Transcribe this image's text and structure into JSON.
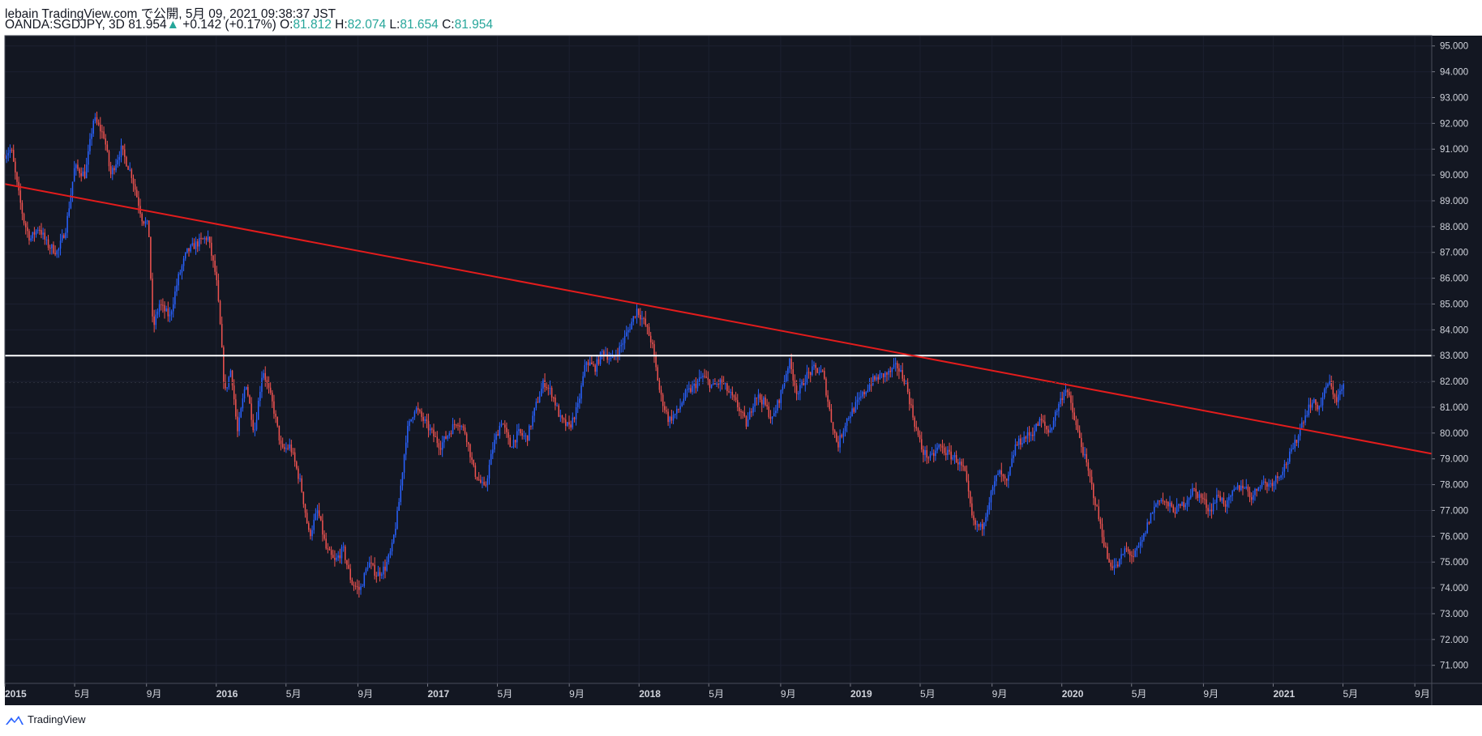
{
  "header": {
    "publish_line": "lebain TradingView.com で公開, 5月 09, 2021 09:38:37 JST",
    "symbol": "OANDA:SGDJPY, 3D",
    "last": "81.954",
    "up_arrow": "▲",
    "change": "+0.142 (+0.17%)",
    "o_label": "O:",
    "o_value": "81.812",
    "h_label": "H:",
    "h_value": "82.074",
    "l_label": "L:",
    "l_value": "81.654",
    "c_label": "C:",
    "c_value": "81.954"
  },
  "footer": {
    "brand": "TradingView",
    "logo_icon": "tradingview-logo-icon"
  },
  "colors": {
    "background": "#131722",
    "up": "#2962ff",
    "down": "#ef5350",
    "trendline": "#e31c1c",
    "hline": "#ffffff",
    "axis_text": "#d1d4dc"
  },
  "chart_data": {
    "type": "candlestick",
    "symbol": "OANDA:SGDJPY",
    "timeframe": "3D",
    "ylim": [
      70.3,
      95.4
    ],
    "y_ticks": [
      71,
      72,
      73,
      74,
      75,
      76,
      77,
      78,
      79,
      80,
      81,
      82,
      83,
      84,
      85,
      86,
      87,
      88,
      89,
      90,
      91,
      92,
      93,
      94,
      95
    ],
    "y_tick_labels": [
      "71.000",
      "72.000",
      "73.000",
      "74.000",
      "75.000",
      "76.000",
      "77.000",
      "78.000",
      "79.000",
      "80.000",
      "81.000",
      "82.000",
      "83.000",
      "84.000",
      "85.000",
      "86.000",
      "87.000",
      "88.000",
      "89.000",
      "90.000",
      "91.000",
      "92.000",
      "93.000",
      "94.000",
      "95.000"
    ],
    "xlim": [
      2015.0,
      2021.75
    ],
    "x_ticks": [
      {
        "t": 2015.0,
        "label": "2015"
      },
      {
        "t": 2015.33,
        "label": "5月"
      },
      {
        "t": 2015.67,
        "label": "9月"
      },
      {
        "t": 2016.0,
        "label": "2016"
      },
      {
        "t": 2016.33,
        "label": "5月"
      },
      {
        "t": 2016.67,
        "label": "9月"
      },
      {
        "t": 2017.0,
        "label": "2017"
      },
      {
        "t": 2017.33,
        "label": "5月"
      },
      {
        "t": 2017.67,
        "label": "9月"
      },
      {
        "t": 2018.0,
        "label": "2018"
      },
      {
        "t": 2018.33,
        "label": "5月"
      },
      {
        "t": 2018.67,
        "label": "9月"
      },
      {
        "t": 2019.0,
        "label": "2019"
      },
      {
        "t": 2019.33,
        "label": "5月"
      },
      {
        "t": 2019.67,
        "label": "9月"
      },
      {
        "t": 2020.0,
        "label": "2020"
      },
      {
        "t": 2020.33,
        "label": "5月"
      },
      {
        "t": 2020.67,
        "label": "9月"
      },
      {
        "t": 2021.0,
        "label": "2021"
      },
      {
        "t": 2021.33,
        "label": "5月"
      },
      {
        "t": 2021.67,
        "label": "9月"
      }
    ],
    "close_path": [
      [
        2015.0,
        90.8
      ],
      [
        2015.03,
        91.0
      ],
      [
        2015.06,
        89.5
      ],
      [
        2015.09,
        88.2
      ],
      [
        2015.12,
        87.5
      ],
      [
        2015.16,
        88.0
      ],
      [
        2015.2,
        87.3
      ],
      [
        2015.25,
        87.0
      ],
      [
        2015.29,
        88.0
      ],
      [
        2015.33,
        90.3
      ],
      [
        2015.38,
        90.0
      ],
      [
        2015.42,
        92.2
      ],
      [
        2015.47,
        91.5
      ],
      [
        2015.5,
        90.0
      ],
      [
        2015.55,
        91.0
      ],
      [
        2015.6,
        90.0
      ],
      [
        2015.65,
        88.3
      ],
      [
        2015.68,
        88.0
      ],
      [
        2015.7,
        84.0
      ],
      [
        2015.73,
        85.0
      ],
      [
        2015.78,
        84.5
      ],
      [
        2015.82,
        86.0
      ],
      [
        2015.86,
        87.0
      ],
      [
        2015.9,
        87.3
      ],
      [
        2015.96,
        87.6
      ],
      [
        2016.0,
        86.0
      ],
      [
        2016.02,
        84.0
      ],
      [
        2016.04,
        81.5
      ],
      [
        2016.07,
        82.5
      ],
      [
        2016.1,
        80.0
      ],
      [
        2016.14,
        82.0
      ],
      [
        2016.18,
        80.0
      ],
      [
        2016.22,
        82.5
      ],
      [
        2016.27,
        81.0
      ],
      [
        2016.31,
        79.3
      ],
      [
        2016.35,
        79.5
      ],
      [
        2016.4,
        78.0
      ],
      [
        2016.44,
        76.0
      ],
      [
        2016.48,
        77.0
      ],
      [
        2016.52,
        75.5
      ],
      [
        2016.56,
        75.0
      ],
      [
        2016.6,
        75.5
      ],
      [
        2016.64,
        74.2
      ],
      [
        2016.68,
        73.9
      ],
      [
        2016.72,
        75.0
      ],
      [
        2016.76,
        74.5
      ],
      [
        2016.8,
        74.8
      ],
      [
        2016.83,
        75.5
      ],
      [
        2016.86,
        77.0
      ],
      [
        2016.9,
        80.0
      ],
      [
        2016.94,
        81.0
      ],
      [
        2016.98,
        80.5
      ],
      [
        2017.02,
        80.0
      ],
      [
        2017.06,
        79.5
      ],
      [
        2017.1,
        80.0
      ],
      [
        2017.14,
        80.5
      ],
      [
        2017.18,
        80.0
      ],
      [
        2017.22,
        78.5
      ],
      [
        2017.27,
        77.8
      ],
      [
        2017.31,
        79.5
      ],
      [
        2017.35,
        80.5
      ],
      [
        2017.39,
        79.5
      ],
      [
        2017.43,
        80.0
      ],
      [
        2017.47,
        79.8
      ],
      [
        2017.51,
        81.0
      ],
      [
        2017.55,
        82.0
      ],
      [
        2017.59,
        81.5
      ],
      [
        2017.63,
        80.5
      ],
      [
        2017.67,
        80.2
      ],
      [
        2017.71,
        81.0
      ],
      [
        2017.75,
        82.8
      ],
      [
        2017.79,
        82.5
      ],
      [
        2017.83,
        83.2
      ],
      [
        2017.87,
        82.8
      ],
      [
        2017.91,
        83.3
      ],
      [
        2017.95,
        84.0
      ],
      [
        2017.99,
        84.8
      ],
      [
        2018.03,
        84.2
      ],
      [
        2018.06,
        83.5
      ],
      [
        2018.1,
        81.5
      ],
      [
        2018.14,
        80.5
      ],
      [
        2018.18,
        80.8
      ],
      [
        2018.22,
        81.5
      ],
      [
        2018.26,
        81.8
      ],
      [
        2018.3,
        82.2
      ],
      [
        2018.35,
        81.8
      ],
      [
        2018.39,
        82.0
      ],
      [
        2018.43,
        81.5
      ],
      [
        2018.47,
        81.0
      ],
      [
        2018.51,
        80.3
      ],
      [
        2018.55,
        81.5
      ],
      [
        2018.59,
        81.2
      ],
      [
        2018.63,
        80.5
      ],
      [
        2018.67,
        81.5
      ],
      [
        2018.71,
        82.8
      ],
      [
        2018.75,
        81.5
      ],
      [
        2018.79,
        82.2
      ],
      [
        2018.83,
        82.5
      ],
      [
        2018.87,
        82.3
      ],
      [
        2018.91,
        80.5
      ],
      [
        2018.94,
        79.5
      ],
      [
        2018.98,
        80.5
      ],
      [
        2019.02,
        81.0
      ],
      [
        2019.06,
        81.5
      ],
      [
        2019.1,
        82.0
      ],
      [
        2019.14,
        82.2
      ],
      [
        2019.18,
        82.3
      ],
      [
        2019.22,
        82.6
      ],
      [
        2019.26,
        82.0
      ],
      [
        2019.3,
        80.5
      ],
      [
        2019.34,
        79.3
      ],
      [
        2019.38,
        79.0
      ],
      [
        2019.42,
        79.5
      ],
      [
        2019.46,
        79.2
      ],
      [
        2019.5,
        79.0
      ],
      [
        2019.54,
        78.5
      ],
      [
        2019.58,
        76.5
      ],
      [
        2019.62,
        76.3
      ],
      [
        2019.66,
        77.5
      ],
      [
        2019.7,
        78.5
      ],
      [
        2019.74,
        78.0
      ],
      [
        2019.78,
        79.5
      ],
      [
        2019.82,
        79.8
      ],
      [
        2019.86,
        80.0
      ],
      [
        2019.9,
        80.5
      ],
      [
        2019.94,
        80.0
      ],
      [
        2019.98,
        81.0
      ],
      [
        2020.02,
        81.8
      ],
      [
        2020.06,
        80.5
      ],
      [
        2020.1,
        79.3
      ],
      [
        2020.14,
        78.0
      ],
      [
        2020.18,
        76.5
      ],
      [
        2020.22,
        75.0
      ],
      [
        2020.26,
        74.8
      ],
      [
        2020.3,
        75.5
      ],
      [
        2020.34,
        75.2
      ],
      [
        2020.38,
        75.8
      ],
      [
        2020.42,
        76.8
      ],
      [
        2020.46,
        77.5
      ],
      [
        2020.5,
        77.2
      ],
      [
        2020.54,
        77.0
      ],
      [
        2020.58,
        77.3
      ],
      [
        2020.62,
        77.8
      ],
      [
        2020.66,
        77.5
      ],
      [
        2020.7,
        77.0
      ],
      [
        2020.74,
        77.6
      ],
      [
        2020.78,
        77.2
      ],
      [
        2020.82,
        77.8
      ],
      [
        2020.86,
        78.0
      ],
      [
        2020.9,
        77.5
      ],
      [
        2020.94,
        78.1
      ],
      [
        2020.98,
        78.0
      ],
      [
        2021.02,
        78.3
      ],
      [
        2021.06,
        78.8
      ],
      [
        2021.1,
        79.5
      ],
      [
        2021.14,
        80.5
      ],
      [
        2021.18,
        81.2
      ],
      [
        2021.22,
        81.0
      ],
      [
        2021.26,
        82.0
      ],
      [
        2021.3,
        81.3
      ],
      [
        2021.34,
        81.954
      ]
    ],
    "horizontal_line": {
      "value": 83.0,
      "label": "83.000"
    },
    "trendline": {
      "start": [
        2015.0,
        89.65
      ],
      "end": [
        2021.75,
        79.2
      ]
    },
    "last_price_label": "81.954"
  }
}
